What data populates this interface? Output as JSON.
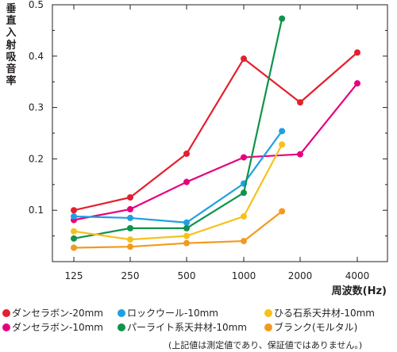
{
  "chart_data": {
    "type": "line",
    "ylabel": "垂直入射吸音率",
    "xlabel": "周波数(Hz)",
    "x_categories": [
      "125",
      "250",
      "500",
      "1000",
      "2000",
      "4000"
    ],
    "y_ticks": [
      "0.1",
      "0.2",
      "0.3",
      "0.4",
      "0.5"
    ],
    "ylim": [
      0,
      0.5
    ],
    "grid": false,
    "legend_position": "bottom",
    "series": [
      {
        "name": "ダンセラボン-20mm",
        "color": "#e4202e",
        "points": [
          [
            125,
            0.1
          ],
          [
            250,
            0.125
          ],
          [
            500,
            0.21
          ],
          [
            1000,
            0.395
          ],
          [
            2000,
            0.31
          ],
          [
            4000,
            0.407
          ]
        ]
      },
      {
        "name": "ダンセラボン-10mm",
        "color": "#e6007e",
        "points": [
          [
            125,
            0.081
          ],
          [
            250,
            0.102
          ],
          [
            500,
            0.155
          ],
          [
            1000,
            0.203
          ],
          [
            2000,
            0.209
          ],
          [
            4000,
            0.347
          ]
        ]
      },
      {
        "name": "ロックウール-10mm",
        "color": "#1fa0e0",
        "points": [
          [
            125,
            0.088
          ],
          [
            250,
            0.085
          ],
          [
            500,
            0.076
          ],
          [
            1000,
            0.152
          ],
          [
            1600,
            0.254
          ]
        ]
      },
      {
        "name": "パーライト系天井材-10mm",
        "color": "#10934b",
        "points": [
          [
            125,
            0.045
          ],
          [
            250,
            0.065
          ],
          [
            500,
            0.065
          ],
          [
            1000,
            0.134
          ],
          [
            1600,
            0.473
          ]
        ]
      },
      {
        "name": "ひる石系天井材-10mm",
        "color": "#f8c11a",
        "points": [
          [
            125,
            0.059
          ],
          [
            250,
            0.043
          ],
          [
            500,
            0.05
          ],
          [
            1000,
            0.088
          ],
          [
            1600,
            0.228
          ]
        ]
      },
      {
        "name": "ブランク(モルタル)",
        "color": "#f39a1e",
        "points": [
          [
            125,
            0.027
          ],
          [
            250,
            0.029
          ],
          [
            500,
            0.036
          ],
          [
            1000,
            0.04
          ],
          [
            1600,
            0.098
          ]
        ]
      }
    ]
  },
  "footnote": "(上記値は測定値であり、保証値ではありません。)"
}
